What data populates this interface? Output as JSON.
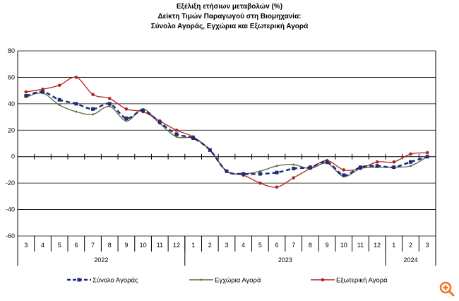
{
  "chart_data": {
    "type": "line",
    "title": [
      "Εξέλιξη ετήσιων μεταβολών (%)",
      "Δείκτη Τιμών Παραγωγού στη Βιομηχανία:",
      "Σύνολο Αγοράς, Εγχώρια και Εξωτερική Αγορά"
    ],
    "months": [
      "3",
      "4",
      "5",
      "6",
      "7",
      "8",
      "9",
      "10",
      "11",
      "12",
      "1",
      "2",
      "3",
      "4",
      "5",
      "6",
      "7",
      "8",
      "9",
      "10",
      "11",
      "12",
      "1",
      "2",
      "3"
    ],
    "years": [
      {
        "label": "2022",
        "count": 10
      },
      {
        "label": "2023",
        "count": 12
      },
      {
        "label": "2024",
        "count": 3
      }
    ],
    "ylim": [
      -60,
      80
    ],
    "yticks": [
      80,
      60,
      40,
      20,
      0,
      -20,
      -40,
      -60
    ],
    "grid": true,
    "legend": "bottom",
    "series": [
      {
        "name": "Σύνολο Αγοράς",
        "color": "#1f2a7a",
        "style": "dashed-square",
        "values": [
          46,
          49,
          43,
          40,
          36,
          40,
          29,
          35,
          26,
          17,
          14,
          5,
          -11,
          -13,
          -13,
          -12,
          -9,
          -8,
          -4,
          -14,
          -8,
          -7,
          -8,
          -4,
          0
        ]
      },
      {
        "name": "Εγχώρια Αγορά",
        "color": "#5a6b3a",
        "style": "solid-dot",
        "values": [
          45,
          48,
          39,
          34,
          32,
          38,
          27,
          36,
          25,
          15,
          14,
          5,
          -11,
          -13,
          -11,
          -7,
          -6,
          -9,
          -5,
          -15,
          -9,
          -8,
          -8,
          -7,
          0
        ]
      },
      {
        "name": "Εξωτερική Αγορά",
        "color": "#b22222",
        "style": "solid-circle",
        "values": [
          49,
          51,
          54,
          60,
          47,
          44,
          36,
          34,
          27,
          20,
          15,
          5,
          -11,
          -14,
          -20,
          -23,
          -16,
          -9,
          -3,
          -10,
          -9,
          -4,
          -4,
          2,
          3
        ]
      }
    ]
  },
  "zoom_icon": {
    "name": "zoom-in-icon",
    "color": "#f07020"
  }
}
